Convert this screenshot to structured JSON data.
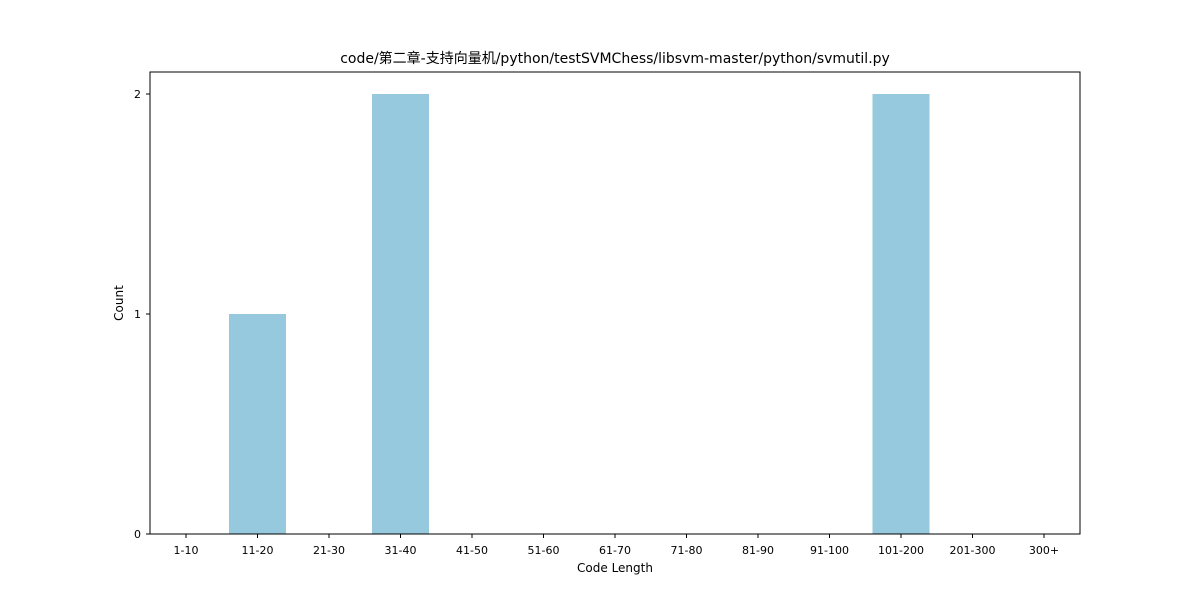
{
  "chart_data": {
    "type": "bar",
    "title": "code/第二章-支持向量机/python/testSVMChess/libsvm-master/python/svmutil.py",
    "xlabel": "Code Length",
    "ylabel": "Count",
    "categories": [
      "1-10",
      "11-20",
      "21-30",
      "31-40",
      "41-50",
      "51-60",
      "61-70",
      "71-80",
      "81-90",
      "91-100",
      "101-200",
      "201-300",
      "300+"
    ],
    "values": [
      0,
      1,
      0,
      2,
      0,
      0,
      0,
      0,
      0,
      0,
      2,
      0,
      0
    ],
    "ylim": [
      0,
      2.1
    ],
    "yticks": [
      0,
      1,
      2
    ],
    "grid": false,
    "legend": "none",
    "bar_color": "#96c9de"
  }
}
